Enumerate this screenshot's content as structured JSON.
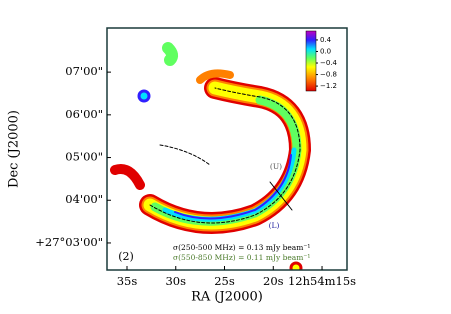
{
  "chart_data": {
    "type": "image",
    "x_label": "RA (J2000)",
    "y_label": "Dec (J2000)",
    "xlim": [
      37.05,
      12.44
    ],
    "xticks": [
      {
        "value": 35,
        "label": "35s"
      },
      {
        "value": 30,
        "label": "30s"
      },
      {
        "value": 25,
        "label": "25s"
      },
      {
        "value": 20,
        "label": "20s"
      },
      {
        "value": 15,
        "label": "12h54m15s"
      }
    ],
    "ylim": [
      142,
      482
    ],
    "yticks": [
      {
        "value": 420,
        "label": "07'00\""
      },
      {
        "value": 360,
        "label": "06'00\""
      },
      {
        "value": 300,
        "label": "05'00\""
      },
      {
        "value": 240,
        "label": "04'00\""
      },
      {
        "value": 180,
        "label": "+27°03'00\""
      }
    ],
    "clim": [
      -1.37,
      0.71
    ],
    "cticks": [
      0.4,
      {
        "value": 0,
        "label": "0.0"
      },
      {
        "value": -0.4,
        "label": "−0.4"
      },
      {
        "value": -0.8,
        "label": "−0.8"
      },
      {
        "value": -1.2,
        "label": "−1.2"
      }
    ],
    "annotations": {
      "upper": "(U)",
      "lower": "(L)",
      "panel": "(2)",
      "sigma1": "σ(250-500 MHz) = 0.13 mJy beam⁻¹",
      "sigma2": "σ(550-850 MHz) = 0.11 mJy beam⁻¹"
    }
  }
}
